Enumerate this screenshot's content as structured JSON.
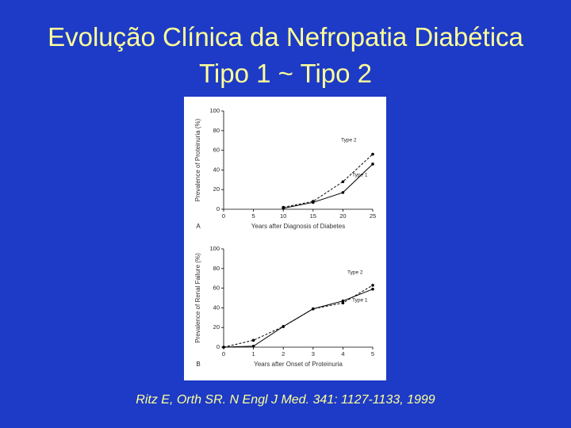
{
  "title": "Evolução Clínica da Nefropatia Diabética Tipo 1 ~ Tipo 2",
  "citation": "Ritz E, Orth SR. N Engl J Med. 341: 1127-1133, 1999",
  "chart_data": [
    {
      "type": "line",
      "panel": "A",
      "x_label": "Years after Diagnosis of Diabetes",
      "y_label": "Prevalence of Proteinuria (%)",
      "xlim": [
        0,
        25
      ],
      "xticks": [
        0,
        5,
        10,
        15,
        20,
        25
      ],
      "ylim": [
        0,
        100
      ],
      "yticks": [
        0,
        20,
        40,
        60,
        80,
        100
      ],
      "series": [
        {
          "name": "Type 2",
          "color": "#000000",
          "line_style": "dashed",
          "x": [
            10,
            15,
            20,
            25
          ],
          "values": [
            2,
            8,
            28,
            56
          ]
        },
        {
          "name": "Type 1",
          "color": "#000000",
          "line_style": "solid",
          "x": [
            10,
            15,
            20,
            25
          ],
          "values": [
            1,
            7,
            17,
            46
          ]
        }
      ]
    },
    {
      "type": "line",
      "panel": "B",
      "x_label": "Years after Onset of Proteinuria",
      "y_label": "Prevalence of Renal Failure (%)",
      "xlim": [
        0,
        5
      ],
      "xticks": [
        0,
        1,
        2,
        3,
        4,
        5
      ],
      "ylim": [
        0,
        100
      ],
      "yticks": [
        0,
        20,
        40,
        60,
        80,
        100
      ],
      "series": [
        {
          "name": "Type 2",
          "color": "#000000",
          "line_style": "dashed",
          "x": [
            0,
            1,
            2,
            3,
            4,
            5
          ],
          "values": [
            0,
            7,
            21,
            39,
            45,
            63
          ]
        },
        {
          "name": "Type 1",
          "color": "#000000",
          "line_style": "solid",
          "x": [
            0,
            1,
            2,
            3,
            4,
            5
          ],
          "values": [
            0,
            1,
            21,
            39,
            47,
            59
          ]
        }
      ]
    }
  ]
}
